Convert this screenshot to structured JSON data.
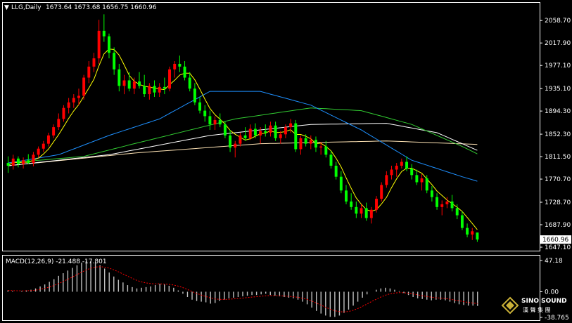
{
  "header": {
    "symbol": "LLG,Daily",
    "ohlc": "1673.64 1673.68 1656.75 1660.96"
  },
  "macd_header": {
    "label": "MACD(12,26,9) -21.488 -17.801"
  },
  "price_axis": {
    "ticks": [
      "2058.70",
      "2017.90",
      "1977.10",
      "1935.10",
      "1894.30",
      "1852.30",
      "1811.50",
      "1770.70",
      "1728.70",
      "1687.90",
      "1647.10"
    ],
    "current": "1660.96"
  },
  "macd_axis": {
    "ticks": [
      "47.18",
      "0.00",
      "-38.765"
    ]
  },
  "watermark": {
    "line1": "SINO SOUND",
    "line2": "漢 聲 集 團"
  },
  "colors": {
    "background": "#000000",
    "bull": "#ff0000",
    "bear": "#00ff00",
    "ma5": "#ffff00",
    "ma20": "#1e90ff",
    "ma30": "#32cd32",
    "ma60": "#ffffff",
    "ma120": "#ffe4b5",
    "histogram": "#c0c0c0",
    "signal": "#ff0000",
    "grid_frame": "#ffffff"
  },
  "chart_data": {
    "type": "candlestick",
    "period": "Daily",
    "symbol": "LLG",
    "ylim": [
      1647.1,
      2073.0
    ],
    "macd_ylim": [
      -38.765,
      47.18
    ],
    "candles": [
      [
        1800,
        1812,
        1782,
        1795
      ],
      [
        1795,
        1815,
        1788,
        1808
      ],
      [
        1808,
        1812,
        1792,
        1798
      ],
      [
        1798,
        1810,
        1790,
        1805
      ],
      [
        1805,
        1816,
        1798,
        1800
      ],
      [
        1800,
        1820,
        1794,
        1815
      ],
      [
        1815,
        1830,
        1810,
        1826
      ],
      [
        1826,
        1840,
        1820,
        1835
      ],
      [
        1835,
        1855,
        1830,
        1850
      ],
      [
        1850,
        1870,
        1845,
        1865
      ],
      [
        1865,
        1890,
        1860,
        1880
      ],
      [
        1880,
        1905,
        1875,
        1900
      ],
      [
        1900,
        1918,
        1890,
        1910
      ],
      [
        1910,
        1925,
        1900,
        1918
      ],
      [
        1918,
        1935,
        1905,
        1922
      ],
      [
        1922,
        1960,
        1915,
        1955
      ],
      [
        1955,
        1985,
        1945,
        1975
      ],
      [
        1975,
        2000,
        1965,
        1990
      ],
      [
        1990,
        2060,
        1980,
        2040
      ],
      [
        2040,
        2070,
        2020,
        2030
      ],
      [
        2030,
        2035,
        1990,
        2000
      ],
      [
        2000,
        2010,
        1960,
        1970
      ],
      [
        1970,
        1980,
        1930,
        1940
      ],
      [
        1940,
        1960,
        1925,
        1950
      ],
      [
        1950,
        1965,
        1930,
        1935
      ],
      [
        1935,
        1955,
        1925,
        1948
      ],
      [
        1948,
        1965,
        1935,
        1940
      ],
      [
        1940,
        1960,
        1920,
        1925
      ],
      [
        1925,
        1945,
        1915,
        1940
      ],
      [
        1940,
        1950,
        1920,
        1928
      ],
      [
        1928,
        1945,
        1920,
        1938
      ],
      [
        1938,
        1955,
        1925,
        1935
      ],
      [
        1935,
        1975,
        1930,
        1970
      ],
      [
        1970,
        1985,
        1955,
        1980
      ],
      [
        1980,
        1995,
        1965,
        1975
      ],
      [
        1975,
        1985,
        1950,
        1955
      ],
      [
        1955,
        1965,
        1930,
        1935
      ],
      [
        1935,
        1945,
        1905,
        1910
      ],
      [
        1910,
        1920,
        1890,
        1895
      ],
      [
        1895,
        1905,
        1875,
        1885
      ],
      [
        1885,
        1895,
        1860,
        1870
      ],
      [
        1870,
        1885,
        1860,
        1878
      ],
      [
        1878,
        1890,
        1865,
        1870
      ],
      [
        1870,
        1875,
        1845,
        1850
      ],
      [
        1850,
        1860,
        1820,
        1828
      ],
      [
        1828,
        1840,
        1810,
        1835
      ],
      [
        1835,
        1855,
        1830,
        1850
      ],
      [
        1850,
        1865,
        1840,
        1845
      ],
      [
        1845,
        1870,
        1842,
        1862
      ],
      [
        1862,
        1872,
        1845,
        1850
      ],
      [
        1850,
        1865,
        1835,
        1858
      ],
      [
        1858,
        1870,
        1848,
        1855
      ],
      [
        1855,
        1875,
        1848,
        1868
      ],
      [
        1868,
        1875,
        1840,
        1845
      ],
      [
        1845,
        1858,
        1835,
        1852
      ],
      [
        1852,
        1870,
        1845,
        1865
      ],
      [
        1865,
        1880,
        1855,
        1872
      ],
      [
        1872,
        1878,
        1820,
        1825
      ],
      [
        1825,
        1850,
        1815,
        1845
      ],
      [
        1845,
        1852,
        1830,
        1835
      ],
      [
        1835,
        1850,
        1825,
        1842
      ],
      [
        1842,
        1848,
        1820,
        1828
      ],
      [
        1828,
        1838,
        1815,
        1830
      ],
      [
        1830,
        1840,
        1810,
        1815
      ],
      [
        1815,
        1822,
        1790,
        1795
      ],
      [
        1795,
        1802,
        1770,
        1775
      ],
      [
        1775,
        1785,
        1745,
        1750
      ],
      [
        1750,
        1760,
        1725,
        1730
      ],
      [
        1730,
        1745,
        1715,
        1720
      ],
      [
        1720,
        1730,
        1700,
        1708
      ],
      [
        1708,
        1725,
        1700,
        1718
      ],
      [
        1718,
        1728,
        1695,
        1700
      ],
      [
        1700,
        1720,
        1690,
        1715
      ],
      [
        1715,
        1740,
        1710,
        1735
      ],
      [
        1735,
        1765,
        1730,
        1760
      ],
      [
        1760,
        1785,
        1755,
        1778
      ],
      [
        1778,
        1795,
        1770,
        1788
      ],
      [
        1788,
        1800,
        1775,
        1795
      ],
      [
        1795,
        1808,
        1790,
        1802
      ],
      [
        1802,
        1812,
        1785,
        1790
      ],
      [
        1790,
        1798,
        1770,
        1778
      ],
      [
        1778,
        1788,
        1760,
        1765
      ],
      [
        1765,
        1780,
        1750,
        1772
      ],
      [
        1772,
        1778,
        1745,
        1750
      ],
      [
        1750,
        1758,
        1730,
        1738
      ],
      [
        1738,
        1745,
        1715,
        1720
      ],
      [
        1720,
        1732,
        1705,
        1725
      ],
      [
        1725,
        1738,
        1718,
        1730
      ],
      [
        1730,
        1742,
        1712,
        1718
      ],
      [
        1718,
        1725,
        1698,
        1705
      ],
      [
        1705,
        1712,
        1678,
        1682
      ],
      [
        1682,
        1690,
        1665,
        1670
      ],
      [
        1670,
        1682,
        1660,
        1676
      ],
      [
        1673.64,
        1673.68,
        1656.75,
        1660.96
      ]
    ],
    "ma": {
      "ma5": {
        "color": "#ffff00"
      },
      "ma20": {
        "color": "#1e90ff",
        "values": [
          [
            0,
            1800
          ],
          [
            10,
            1815
          ],
          [
            20,
            1850
          ],
          [
            30,
            1880
          ],
          [
            40,
            1930
          ],
          [
            50,
            1930
          ],
          [
            60,
            1905
          ],
          [
            70,
            1860
          ],
          [
            80,
            1805
          ],
          [
            90,
            1775
          ],
          [
            100,
            1748
          ],
          [
            103,
            1735
          ]
        ]
      },
      "ma30": {
        "color": "#32cd32",
        "values": [
          [
            0,
            1800
          ],
          [
            15,
            1812
          ],
          [
            25,
            1835
          ],
          [
            45,
            1880
          ],
          [
            60,
            1900
          ],
          [
            70,
            1895
          ],
          [
            80,
            1870
          ],
          [
            90,
            1830
          ],
          [
            100,
            1785
          ],
          [
            103,
            1760
          ]
        ]
      },
      "ma60": {
        "color": "#ffffff",
        "values": [
          [
            0,
            1795
          ],
          [
            20,
            1815
          ],
          [
            40,
            1850
          ],
          [
            60,
            1870
          ],
          [
            75,
            1872
          ],
          [
            85,
            1855
          ],
          [
            95,
            1815
          ],
          [
            103,
            1780
          ]
        ]
      },
      "ma120": {
        "color": "#ffe4b5",
        "values": [
          [
            0,
            1795
          ],
          [
            25,
            1818
          ],
          [
            50,
            1835
          ],
          [
            75,
            1840
          ],
          [
            95,
            1833
          ],
          [
            103,
            1828
          ]
        ]
      }
    },
    "macd": {
      "params": "12,26,9",
      "macd": -21.488,
      "signal": -17.801,
      "histogram": [
        2,
        1,
        0,
        1,
        2,
        3,
        5,
        8,
        11,
        15,
        19,
        24,
        28,
        32,
        36,
        40,
        44,
        47,
        46,
        44,
        40,
        35,
        29,
        23,
        18,
        14,
        10,
        7,
        5,
        6,
        7,
        8,
        10,
        12,
        11,
        9,
        6,
        2,
        -3,
        -8,
        -12,
        -14,
        -15,
        -16,
        -18,
        -17,
        -14,
        -12,
        -10,
        -9,
        -8,
        -7,
        -6,
        -5,
        -5,
        -4,
        -3,
        -5,
        -6,
        -7,
        -8,
        -9,
        -10,
        -12,
        -15,
        -19,
        -24,
        -29,
        -33,
        -36,
        -38,
        -38,
        -36,
        -32,
        -27,
        -21,
        -15,
        -9,
        -4,
        0,
        3,
        5,
        6,
        5,
        3,
        1,
        -2,
        -5,
        -8,
        -10,
        -11,
        -12,
        -13,
        -12,
        -12,
        -13,
        -15,
        -17,
        -19,
        -20,
        -21,
        -21,
        -21.488
      ]
    }
  }
}
